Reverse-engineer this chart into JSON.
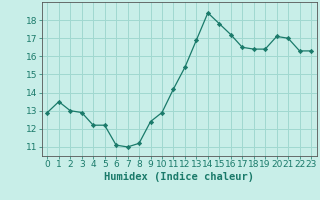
{
  "x": [
    0,
    1,
    2,
    3,
    4,
    5,
    6,
    7,
    8,
    9,
    10,
    11,
    12,
    13,
    14,
    15,
    16,
    17,
    18,
    19,
    20,
    21,
    22,
    23
  ],
  "y": [
    12.9,
    13.5,
    13.0,
    12.9,
    12.2,
    12.2,
    11.1,
    11.0,
    11.2,
    12.4,
    12.9,
    14.2,
    15.4,
    16.9,
    18.4,
    17.8,
    17.2,
    16.5,
    16.4,
    16.4,
    17.1,
    17.0,
    16.3,
    16.3
  ],
  "line_color": "#1a7a6a",
  "marker": "D",
  "marker_size": 2.2,
  "bg_color": "#c8eee8",
  "grid_color": "#a0d8d0",
  "xlabel": "Humidex (Indice chaleur)",
  "xlabel_fontsize": 7.5,
  "tick_fontsize": 6.5,
  "ylim": [
    10.5,
    19.0
  ],
  "xlim": [
    -0.5,
    23.5
  ],
  "yticks": [
    11,
    12,
    13,
    14,
    15,
    16,
    17,
    18
  ],
  "xticks": [
    0,
    1,
    2,
    3,
    4,
    5,
    6,
    7,
    8,
    9,
    10,
    11,
    12,
    13,
    14,
    15,
    16,
    17,
    18,
    19,
    20,
    21,
    22,
    23
  ]
}
